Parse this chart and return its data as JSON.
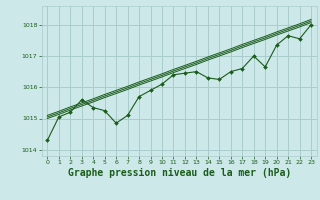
{
  "background_color": "#cce8e8",
  "grid_color": "#aacccc",
  "line_color": "#1a5c1a",
  "title": "Graphe pression niveau de la mer (hPa)",
  "ylim": [
    1013.8,
    1018.6
  ],
  "xlim": [
    -0.5,
    23.5
  ],
  "yticks": [
    1014,
    1015,
    1016,
    1017,
    1018
  ],
  "xticks": [
    0,
    1,
    2,
    3,
    4,
    5,
    6,
    7,
    8,
    9,
    10,
    11,
    12,
    13,
    14,
    15,
    16,
    17,
    18,
    19,
    20,
    21,
    22,
    23
  ],
  "main_series": [
    1014.3,
    1015.05,
    1015.2,
    1015.6,
    1015.35,
    1015.25,
    1014.85,
    1015.1,
    1015.7,
    1015.9,
    1016.1,
    1016.4,
    1016.45,
    1016.5,
    1016.3,
    1016.25,
    1016.5,
    1016.6,
    1017.0,
    1016.65,
    1017.35,
    1017.65,
    1017.55,
    1018.0
  ],
  "linear1": [
    1015.0,
    1015.13,
    1015.27,
    1015.4,
    1015.53,
    1015.67,
    1015.8,
    1015.93,
    1016.07,
    1016.2,
    1016.33,
    1016.47,
    1016.6,
    1016.73,
    1016.87,
    1017.0,
    1017.13,
    1017.27,
    1017.4,
    1017.53,
    1017.67,
    1017.8,
    1017.93,
    1018.07
  ],
  "linear2": [
    1015.05,
    1015.18,
    1015.32,
    1015.45,
    1015.58,
    1015.72,
    1015.85,
    1015.98,
    1016.12,
    1016.25,
    1016.38,
    1016.52,
    1016.65,
    1016.78,
    1016.92,
    1017.05,
    1017.18,
    1017.32,
    1017.45,
    1017.58,
    1017.72,
    1017.85,
    1017.98,
    1018.12
  ],
  "linear3": [
    1015.1,
    1015.23,
    1015.37,
    1015.5,
    1015.63,
    1015.77,
    1015.9,
    1016.03,
    1016.17,
    1016.3,
    1016.43,
    1016.57,
    1016.7,
    1016.83,
    1016.97,
    1017.1,
    1017.23,
    1017.37,
    1017.5,
    1017.63,
    1017.77,
    1017.9,
    1018.03,
    1018.17
  ]
}
